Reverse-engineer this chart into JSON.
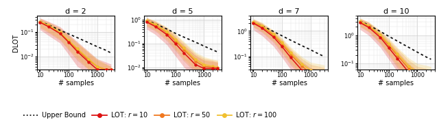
{
  "panels": [
    {
      "title": "d = 2",
      "ylim": [
        0.003,
        0.45
      ],
      "yticks": [
        0.01,
        0.1
      ],
      "has_ylabel": true
    },
    {
      "title": "d = 5",
      "ylim": [
        0.008,
        1.5
      ],
      "yticks": [
        0.01,
        0.1,
        1.0
      ],
      "has_ylabel": false
    },
    {
      "title": "d = 7",
      "ylim": [
        0.03,
        4.0
      ],
      "yticks": [
        0.1,
        1.0
      ],
      "has_ylabel": false
    },
    {
      "title": "d = 10",
      "ylim": [
        0.06,
        5.0
      ],
      "yticks": [
        0.1,
        1.0
      ],
      "has_ylabel": false
    }
  ],
  "xlabel": "# samples",
  "ylabel": "DLOT",
  "x_range": [
    8,
    4000
  ],
  "colors": {
    "r10": "#dd1111",
    "r50": "#f07820",
    "r100": "#f0c030",
    "bound": "#111111"
  },
  "alpha_fill": 0.22,
  "legend": [
    {
      "label": "Upper Bound",
      "color": "#111111",
      "linestyle": "dotted",
      "marker": null
    },
    {
      "label": "LOT: $r=10$",
      "color": "#dd1111",
      "linestyle": "solid",
      "marker": "o"
    },
    {
      "label": "LOT: $r=50$",
      "color": "#f07820",
      "linestyle": "solid",
      "marker": "o"
    },
    {
      "label": "LOT: $r=100$",
      "color": "#f0c030",
      "linestyle": "solid",
      "marker": "o"
    }
  ],
  "panels_data": [
    {
      "x": [
        10,
        20,
        50,
        100,
        200,
        500,
        1000,
        2000,
        3000
      ],
      "bound": [
        0.26,
        0.19,
        0.115,
        0.082,
        0.058,
        0.036,
        0.025,
        0.018,
        0.014
      ],
      "r10_mean": [
        0.24,
        0.16,
        0.085,
        0.038,
        0.016,
        0.006,
        0.003,
        0.003,
        0.003
      ],
      "r10_lo": [
        0.12,
        0.07,
        0.035,
        0.012,
        0.004,
        0.002,
        0.001,
        0.001,
        0.001
      ],
      "r10_hi": [
        0.36,
        0.26,
        0.16,
        0.08,
        0.04,
        0.016,
        0.008,
        0.006,
        0.005
      ],
      "r50_mean": [
        0.25,
        0.17,
        0.09,
        0.042,
        0.019,
        0.007,
        0.004,
        0.003,
        0.003
      ],
      "r50_lo": [
        0.14,
        0.09,
        0.045,
        0.018,
        0.007,
        0.003,
        0.002,
        0.001,
        0.001
      ],
      "r50_hi": [
        0.34,
        0.24,
        0.14,
        0.072,
        0.035,
        0.014,
        0.007,
        0.005,
        0.004
      ],
      "r100_mean": [
        0.26,
        0.18,
        0.095,
        0.045,
        0.021,
        0.008,
        0.004,
        0.003,
        0.003
      ],
      "r100_lo": [
        0.16,
        0.1,
        0.05,
        0.02,
        0.009,
        0.003,
        0.002,
        0.002,
        0.001
      ],
      "r100_hi": [
        0.34,
        0.24,
        0.14,
        0.072,
        0.036,
        0.015,
        0.008,
        0.005,
        0.004
      ]
    },
    {
      "x": [
        10,
        20,
        50,
        100,
        200,
        500,
        1000,
        2000,
        3000
      ],
      "bound": [
        0.95,
        0.68,
        0.41,
        0.27,
        0.185,
        0.115,
        0.078,
        0.054,
        0.044
      ],
      "r10_mean": [
        0.8,
        0.52,
        0.24,
        0.1,
        0.04,
        0.013,
        0.009,
        0.009,
        0.009
      ],
      "r10_lo": [
        0.4,
        0.24,
        0.09,
        0.03,
        0.01,
        0.004,
        0.003,
        0.003,
        0.003
      ],
      "r10_hi": [
        1.2,
        0.82,
        0.42,
        0.19,
        0.085,
        0.032,
        0.02,
        0.018,
        0.016
      ],
      "r50_mean": [
        0.88,
        0.6,
        0.29,
        0.13,
        0.055,
        0.018,
        0.011,
        0.01,
        0.009
      ],
      "r50_lo": [
        0.52,
        0.33,
        0.13,
        0.05,
        0.018,
        0.006,
        0.004,
        0.004,
        0.003
      ],
      "r50_hi": [
        1.22,
        0.87,
        0.47,
        0.24,
        0.105,
        0.038,
        0.024,
        0.02,
        0.018
      ],
      "r100_mean": [
        0.92,
        0.64,
        0.32,
        0.15,
        0.065,
        0.022,
        0.013,
        0.011,
        0.01
      ],
      "r100_lo": [
        0.58,
        0.38,
        0.16,
        0.06,
        0.022,
        0.008,
        0.005,
        0.004,
        0.004
      ],
      "r100_hi": [
        1.24,
        0.9,
        0.5,
        0.26,
        0.12,
        0.044,
        0.028,
        0.022,
        0.02
      ]
    },
    {
      "x": [
        10,
        20,
        50,
        100,
        200,
        500,
        1000,
        2000,
        3000
      ],
      "bound": [
        2.2,
        1.6,
        0.95,
        0.64,
        0.43,
        0.26,
        0.18,
        0.12,
        0.098
      ],
      "r10_mean": [
        2.0,
        1.3,
        0.58,
        0.24,
        0.09,
        0.028,
        0.016,
        0.015,
        0.015
      ],
      "r10_lo": [
        1.1,
        0.65,
        0.25,
        0.09,
        0.03,
        0.008,
        0.005,
        0.005,
        0.005
      ],
      "r10_hi": [
        2.8,
        1.9,
        0.9,
        0.4,
        0.17,
        0.06,
        0.035,
        0.03,
        0.028
      ],
      "r50_mean": [
        2.2,
        1.5,
        0.68,
        0.3,
        0.12,
        0.04,
        0.022,
        0.02,
        0.018
      ],
      "r50_lo": [
        1.4,
        0.88,
        0.35,
        0.13,
        0.045,
        0.014,
        0.008,
        0.007,
        0.006
      ],
      "r50_hi": [
        2.9,
        2.05,
        1.0,
        0.48,
        0.2,
        0.08,
        0.048,
        0.04,
        0.036
      ],
      "r100_mean": [
        2.3,
        1.6,
        0.75,
        0.35,
        0.14,
        0.05,
        0.028,
        0.025,
        0.022
      ],
      "r100_lo": [
        1.5,
        0.95,
        0.4,
        0.16,
        0.055,
        0.018,
        0.01,
        0.009,
        0.008
      ],
      "r100_hi": [
        3.0,
        2.15,
        1.06,
        0.52,
        0.23,
        0.095,
        0.058,
        0.05,
        0.045
      ]
    },
    {
      "x": [
        10,
        20,
        50,
        100,
        200,
        500,
        1000,
        2000,
        3000
      ],
      "bound": [
        3.2,
        2.3,
        1.38,
        0.92,
        0.62,
        0.37,
        0.25,
        0.17,
        0.14
      ],
      "r10_mean": [
        2.8,
        1.9,
        0.85,
        0.36,
        0.15,
        0.048,
        0.028,
        0.025,
        0.022
      ],
      "r10_lo": [
        1.6,
        1.0,
        0.38,
        0.14,
        0.05,
        0.015,
        0.009,
        0.008,
        0.007
      ],
      "r10_hi": [
        3.8,
        2.8,
        1.3,
        0.6,
        0.27,
        0.095,
        0.056,
        0.048,
        0.042
      ],
      "r50_mean": [
        3.0,
        2.1,
        0.98,
        0.44,
        0.19,
        0.065,
        0.038,
        0.033,
        0.03
      ],
      "r50_lo": [
        2.0,
        1.3,
        0.5,
        0.19,
        0.07,
        0.022,
        0.013,
        0.011,
        0.01
      ],
      "r50_hi": [
        4.0,
        2.9,
        1.44,
        0.7,
        0.33,
        0.13,
        0.078,
        0.066,
        0.058
      ],
      "r100_mean": [
        3.1,
        2.2,
        1.05,
        0.5,
        0.22,
        0.08,
        0.048,
        0.042,
        0.038
      ],
      "r100_lo": [
        2.1,
        1.4,
        0.56,
        0.22,
        0.085,
        0.028,
        0.017,
        0.015,
        0.013
      ],
      "r100_hi": [
        4.1,
        3.0,
        1.52,
        0.78,
        0.37,
        0.155,
        0.098,
        0.085,
        0.076
      ]
    }
  ]
}
